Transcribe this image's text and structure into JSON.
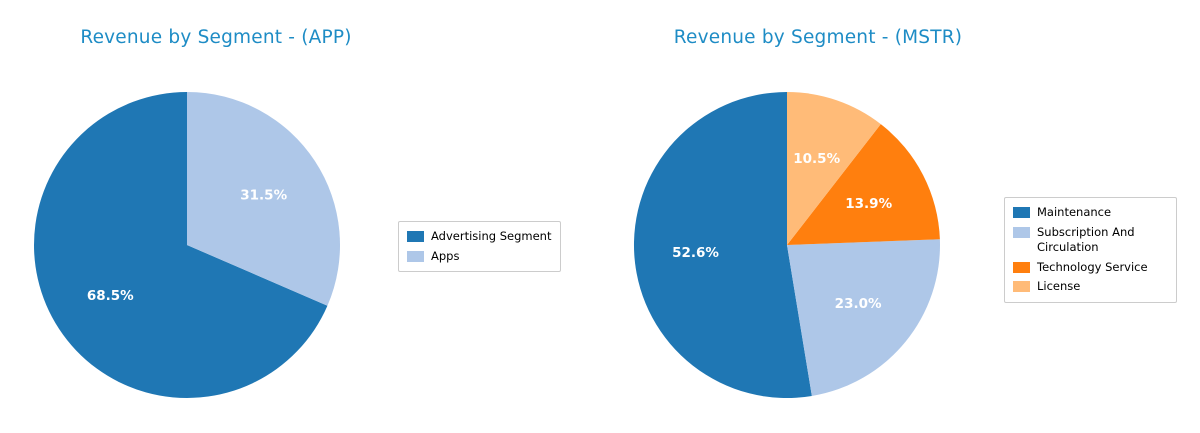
{
  "style": {
    "title_color": "#1e8cc5",
    "pct_label_color": "#ffffff",
    "legend_border_color": "#cccccc",
    "background": "#ffffff"
  },
  "chart_data": [
    {
      "type": "pie",
      "title": "Revenue by Segment - (APP)",
      "labels": [
        "Advertising Segment",
        "Apps"
      ],
      "values": [
        68.5,
        31.5
      ],
      "pct_labels": [
        "68.5%",
        "31.5%"
      ],
      "colors": [
        "#1f77b4",
        "#aec7e8"
      ],
      "start_angle": 90,
      "counterclockwise": true,
      "pct_distance": 0.6,
      "legend_position": "right"
    },
    {
      "type": "pie",
      "title": "Revenue by Segment - (MSTR)",
      "labels": [
        "Maintenance",
        "Subscription And Circulation",
        "Technology Service",
        "License"
      ],
      "values": [
        52.6,
        23.0,
        13.9,
        10.5
      ],
      "pct_labels": [
        "52.6%",
        "23.0%",
        "13.9%",
        "10.5%"
      ],
      "colors": [
        "#1f77b4",
        "#aec7e8",
        "#ff7f0e",
        "#ffbb78"
      ],
      "start_angle": 90,
      "counterclockwise": true,
      "pct_distance": 0.6,
      "legend_position": "right"
    }
  ]
}
